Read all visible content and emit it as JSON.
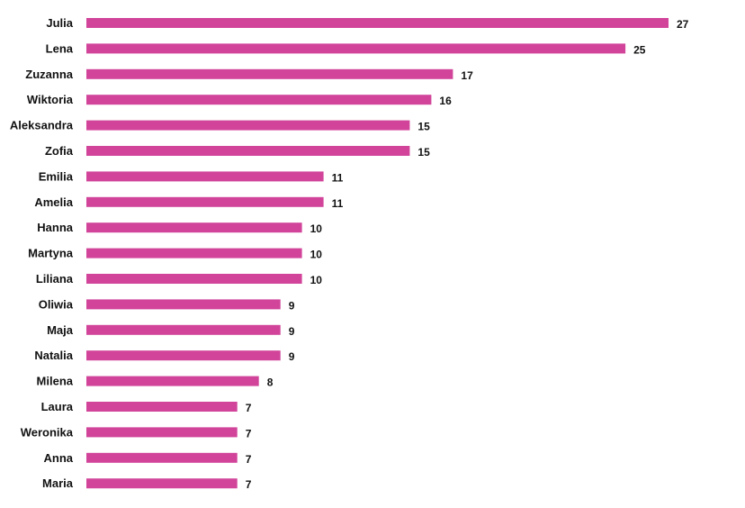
{
  "chart_data": {
    "type": "bar",
    "orientation": "horizontal",
    "categories": [
      "Julia",
      "Lena",
      "Zuzanna",
      "Wiktoria",
      "Aleksandra",
      "Zofia",
      "Emilia",
      "Amelia",
      "Hanna",
      "Martyna",
      "Liliana",
      "Oliwia",
      "Maja",
      "Natalia",
      "Milena",
      "Laura",
      "Weronika",
      "Anna",
      "Maria"
    ],
    "values": [
      27,
      25,
      17,
      16,
      15,
      15,
      11,
      11,
      10,
      10,
      10,
      9,
      9,
      9,
      8,
      7,
      7,
      7,
      7
    ],
    "value_labels": [
      "27",
      "25",
      "17",
      "16",
      "15",
      "15",
      "11",
      "11",
      "10",
      "10",
      "10",
      "9",
      "9",
      "9",
      "8",
      "7",
      "7",
      "7",
      "7"
    ],
    "title": "",
    "xlabel": "",
    "ylabel": "",
    "xlim": [
      0,
      27
    ],
    "grid": false,
    "legend": "none",
    "bar_color": "#D1449A"
  }
}
